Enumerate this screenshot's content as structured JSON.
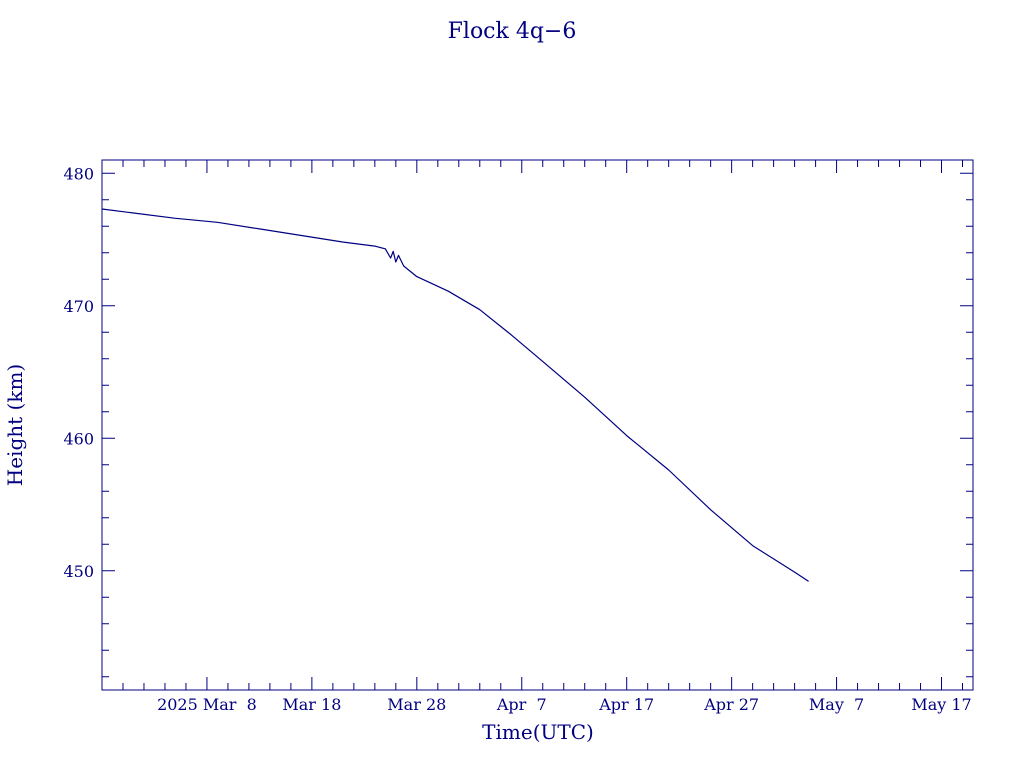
{
  "chart_data": {
    "type": "line",
    "title": "Flock 4q−6",
    "xlabel": "Time(UTC)",
    "ylabel": "Height (km)",
    "color": "#000080",
    "x_is_date": true,
    "xlim": [
      "2025-02-26",
      "2025-05-20"
    ],
    "ylim": [
      441.0,
      481.0
    ],
    "x_ticks": [
      {
        "date": "2025-03-08",
        "label": "2025 Mar  8"
      },
      {
        "date": "2025-03-18",
        "label": "Mar 18"
      },
      {
        "date": "2025-03-28",
        "label": "Mar 28"
      },
      {
        "date": "2025-04-07",
        "label": "Apr  7"
      },
      {
        "date": "2025-04-17",
        "label": "Apr 17"
      },
      {
        "date": "2025-04-27",
        "label": "Apr 27"
      },
      {
        "date": "2025-05-07",
        "label": "May  7"
      },
      {
        "date": "2025-05-17",
        "label": "May 17"
      }
    ],
    "x_minor_step_days": 2,
    "y_ticks": [
      450,
      460,
      470,
      480
    ],
    "y_minor_step": 2,
    "series": [
      {
        "x": [
          "2025-02-26",
          "2025-03-01",
          "2025-03-05",
          "2025-03-09",
          "2025-03-13",
          "2025-03-17",
          "2025-03-21",
          "2025-03-24",
          "2025-03-25",
          "2025-03-25 12:00",
          "2025-03-25 18:00",
          "2025-03-26",
          "2025-03-26 06:00",
          "2025-03-26 18:00",
          "2025-03-28",
          "2025-03-31",
          "2025-04-03",
          "2025-04-06",
          "2025-04-09",
          "2025-04-13",
          "2025-04-17",
          "2025-04-21",
          "2025-04-25",
          "2025-04-29",
          "2025-05-03",
          "2025-05-04 08:00"
        ],
        "y": [
          477.3,
          477.0,
          476.6,
          476.3,
          475.8,
          475.3,
          474.8,
          474.5,
          474.3,
          473.6,
          474.1,
          473.3,
          473.8,
          473.0,
          472.2,
          471.1,
          469.7,
          467.8,
          465.8,
          463.1,
          460.2,
          457.6,
          454.6,
          451.9,
          449.9,
          449.2
        ]
      }
    ]
  }
}
